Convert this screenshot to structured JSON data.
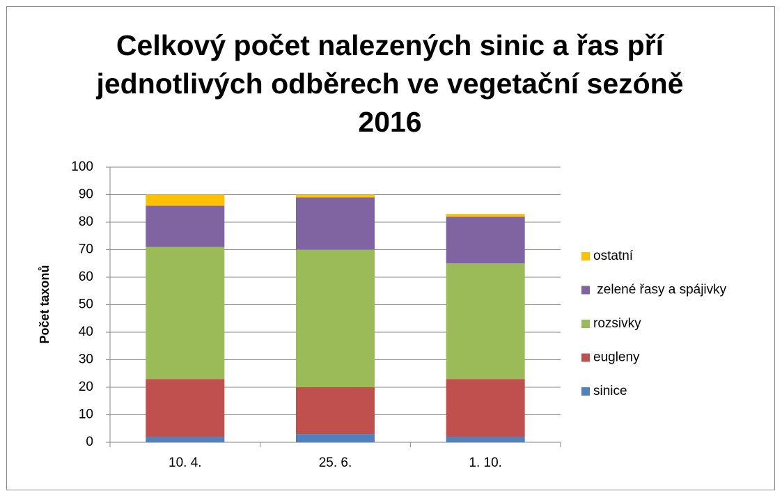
{
  "chart_data": {
    "type": "stacked_bar",
    "title": "Celkový počet nalezených sinic a řas pří jednotlivých odběrech ve vegetační sezóně 2016",
    "y_label": "Počet taxonů",
    "categories": [
      "10. 4.",
      "25. 6.",
      "1. 10."
    ],
    "series": [
      {
        "name": "sinice",
        "color": "#4f81bd",
        "values": [
          2,
          3,
          2
        ]
      },
      {
        "name": "eugleny",
        "color": "#c0504d",
        "values": [
          21,
          17,
          21
        ]
      },
      {
        "name": "rozsivky",
        "color": "#9bbb59",
        "values": [
          48,
          50,
          42
        ]
      },
      {
        "name": " zelené řasy a spájivky",
        "color": "#8064a2",
        "values": [
          15,
          19,
          17
        ]
      },
      {
        "name": "ostatní",
        "color": "#ffc000",
        "values": [
          4,
          1,
          1
        ]
      }
    ],
    "ylim": [
      0,
      100
    ],
    "yticks": [
      0,
      10,
      20,
      30,
      40,
      50,
      60,
      70,
      80,
      90,
      100
    ],
    "grid": true,
    "legend": "right"
  }
}
